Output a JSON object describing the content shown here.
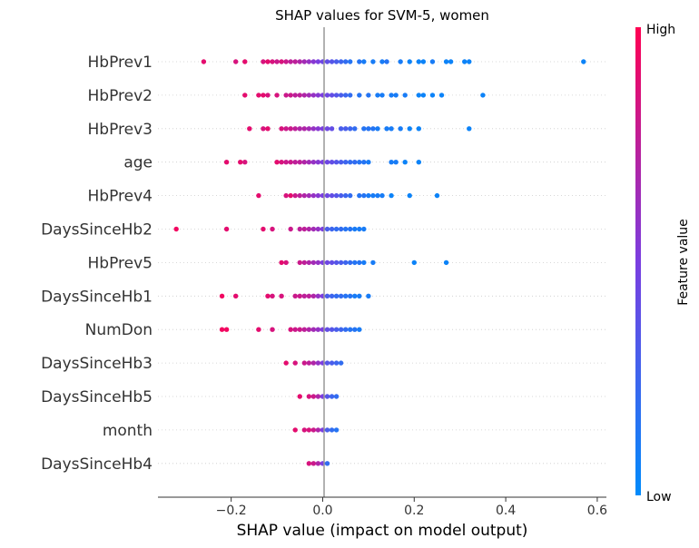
{
  "chart_data": {
    "type": "scatter",
    "title": "SHAP values for SVM-5, women",
    "xlabel": "SHAP value (impact on model output)",
    "xlim": [
      -0.36,
      0.62
    ],
    "xticks": [
      -0.2,
      0.0,
      0.2,
      0.4,
      0.6
    ],
    "xtick_labels": [
      "−0.2",
      "0.0",
      "0.2",
      "0.4",
      "0.6"
    ],
    "colorbar": {
      "label": "Feature value",
      "high": "High",
      "low": "Low",
      "color_high": "#ff0052",
      "color_low": "#008bfb"
    },
    "features": [
      {
        "name": "HbPrev1",
        "points": [
          [
            -0.26,
            0.9
          ],
          [
            -0.19,
            0.85
          ],
          [
            -0.17,
            0.9
          ],
          [
            -0.13,
            0.85
          ],
          [
            -0.12,
            0.9
          ],
          [
            -0.11,
            0.85
          ],
          [
            -0.1,
            0.8
          ],
          [
            -0.09,
            0.85
          ],
          [
            -0.08,
            0.8
          ],
          [
            -0.07,
            0.75
          ],
          [
            -0.06,
            0.75
          ],
          [
            -0.05,
            0.7
          ],
          [
            -0.04,
            0.65
          ],
          [
            -0.03,
            0.6
          ],
          [
            -0.02,
            0.55
          ],
          [
            -0.01,
            0.5
          ],
          [
            0.0,
            0.45
          ],
          [
            0.01,
            0.4
          ],
          [
            0.02,
            0.35
          ],
          [
            0.03,
            0.3
          ],
          [
            0.04,
            0.25
          ],
          [
            0.05,
            0.2
          ],
          [
            0.06,
            0.15
          ],
          [
            0.08,
            0.15
          ],
          [
            0.09,
            0.1
          ],
          [
            0.11,
            0.1
          ],
          [
            0.13,
            0.1
          ],
          [
            0.14,
            0.15
          ],
          [
            0.17,
            0.1
          ],
          [
            0.19,
            0.05
          ],
          [
            0.21,
            0.05
          ],
          [
            0.22,
            0.05
          ],
          [
            0.24,
            0.1
          ],
          [
            0.27,
            0.05
          ],
          [
            0.28,
            0.05
          ],
          [
            0.31,
            0.05
          ],
          [
            0.32,
            0.05
          ],
          [
            0.57,
            0.05
          ]
        ]
      },
      {
        "name": "HbPrev2",
        "points": [
          [
            -0.17,
            0.9
          ],
          [
            -0.14,
            0.9
          ],
          [
            -0.13,
            0.9
          ],
          [
            -0.12,
            0.85
          ],
          [
            -0.1,
            0.85
          ],
          [
            -0.08,
            0.8
          ],
          [
            -0.07,
            0.8
          ],
          [
            -0.06,
            0.75
          ],
          [
            -0.05,
            0.75
          ],
          [
            -0.04,
            0.7
          ],
          [
            -0.03,
            0.65
          ],
          [
            -0.02,
            0.6
          ],
          [
            -0.01,
            0.55
          ],
          [
            0.0,
            0.5
          ],
          [
            0.01,
            0.45
          ],
          [
            0.02,
            0.4
          ],
          [
            0.03,
            0.35
          ],
          [
            0.04,
            0.3
          ],
          [
            0.05,
            0.25
          ],
          [
            0.06,
            0.2
          ],
          [
            0.08,
            0.15
          ],
          [
            0.1,
            0.15
          ],
          [
            0.12,
            0.1
          ],
          [
            0.13,
            0.1
          ],
          [
            0.15,
            0.1
          ],
          [
            0.16,
            0.1
          ],
          [
            0.18,
            0.1
          ],
          [
            0.21,
            0.05
          ],
          [
            0.22,
            0.05
          ],
          [
            0.24,
            0.05
          ],
          [
            0.26,
            0.05
          ],
          [
            0.35,
            0.05
          ]
        ]
      },
      {
        "name": "HbPrev3",
        "points": [
          [
            -0.16,
            0.9
          ],
          [
            -0.13,
            0.85
          ],
          [
            -0.12,
            0.9
          ],
          [
            -0.09,
            0.85
          ],
          [
            -0.08,
            0.8
          ],
          [
            -0.07,
            0.8
          ],
          [
            -0.06,
            0.75
          ],
          [
            -0.05,
            0.7
          ],
          [
            -0.04,
            0.7
          ],
          [
            -0.03,
            0.65
          ],
          [
            -0.02,
            0.6
          ],
          [
            -0.01,
            0.55
          ],
          [
            0.0,
            0.5
          ],
          [
            0.01,
            0.45
          ],
          [
            0.02,
            0.4
          ],
          [
            0.04,
            0.3
          ],
          [
            0.05,
            0.3
          ],
          [
            0.06,
            0.25
          ],
          [
            0.07,
            0.2
          ],
          [
            0.09,
            0.15
          ],
          [
            0.1,
            0.15
          ],
          [
            0.11,
            0.15
          ],
          [
            0.12,
            0.1
          ],
          [
            0.14,
            0.1
          ],
          [
            0.15,
            0.1
          ],
          [
            0.17,
            0.1
          ],
          [
            0.19,
            0.05
          ],
          [
            0.21,
            0.05
          ],
          [
            0.32,
            0.05
          ]
        ]
      },
      {
        "name": "age",
        "points": [
          [
            -0.21,
            0.9
          ],
          [
            -0.18,
            0.9
          ],
          [
            -0.17,
            0.85
          ],
          [
            -0.1,
            0.9
          ],
          [
            -0.09,
            0.85
          ],
          [
            -0.08,
            0.8
          ],
          [
            -0.07,
            0.8
          ],
          [
            -0.06,
            0.75
          ],
          [
            -0.05,
            0.75
          ],
          [
            -0.04,
            0.7
          ],
          [
            -0.03,
            0.65
          ],
          [
            -0.02,
            0.6
          ],
          [
            -0.01,
            0.55
          ],
          [
            0.0,
            0.5
          ],
          [
            0.01,
            0.45
          ],
          [
            0.02,
            0.4
          ],
          [
            0.03,
            0.35
          ],
          [
            0.04,
            0.3
          ],
          [
            0.05,
            0.25
          ],
          [
            0.06,
            0.2
          ],
          [
            0.07,
            0.2
          ],
          [
            0.08,
            0.15
          ],
          [
            0.09,
            0.15
          ],
          [
            0.1,
            0.1
          ],
          [
            0.15,
            0.1
          ],
          [
            0.16,
            0.1
          ],
          [
            0.18,
            0.05
          ],
          [
            0.21,
            0.05
          ]
        ]
      },
      {
        "name": "HbPrev4",
        "points": [
          [
            -0.14,
            0.9
          ],
          [
            -0.08,
            0.85
          ],
          [
            -0.07,
            0.9
          ],
          [
            -0.06,
            0.8
          ],
          [
            -0.05,
            0.75
          ],
          [
            -0.04,
            0.7
          ],
          [
            -0.03,
            0.65
          ],
          [
            -0.02,
            0.6
          ],
          [
            -0.01,
            0.55
          ],
          [
            0.0,
            0.5
          ],
          [
            0.01,
            0.45
          ],
          [
            0.02,
            0.4
          ],
          [
            0.03,
            0.35
          ],
          [
            0.04,
            0.3
          ],
          [
            0.05,
            0.25
          ],
          [
            0.06,
            0.2
          ],
          [
            0.08,
            0.15
          ],
          [
            0.09,
            0.15
          ],
          [
            0.1,
            0.1
          ],
          [
            0.11,
            0.1
          ],
          [
            0.12,
            0.1
          ],
          [
            0.13,
            0.1
          ],
          [
            0.15,
            0.05
          ],
          [
            0.19,
            0.05
          ],
          [
            0.25,
            0.05
          ]
        ]
      },
      {
        "name": "DaysSinceHb2",
        "points": [
          [
            -0.32,
            0.95
          ],
          [
            -0.21,
            0.9
          ],
          [
            -0.13,
            0.9
          ],
          [
            -0.11,
            0.85
          ],
          [
            -0.07,
            0.8
          ],
          [
            -0.05,
            0.75
          ],
          [
            -0.04,
            0.75
          ],
          [
            -0.03,
            0.7
          ],
          [
            -0.02,
            0.65
          ],
          [
            -0.01,
            0.6
          ],
          [
            0.0,
            0.5
          ],
          [
            0.01,
            0.3
          ],
          [
            0.02,
            0.25
          ],
          [
            0.03,
            0.2
          ],
          [
            0.04,
            0.2
          ],
          [
            0.05,
            0.15
          ],
          [
            0.06,
            0.15
          ],
          [
            0.07,
            0.1
          ],
          [
            0.08,
            0.1
          ],
          [
            0.09,
            0.1
          ]
        ]
      },
      {
        "name": "HbPrev5",
        "points": [
          [
            -0.09,
            0.9
          ],
          [
            -0.08,
            0.85
          ],
          [
            -0.05,
            0.8
          ],
          [
            -0.04,
            0.75
          ],
          [
            -0.03,
            0.7
          ],
          [
            -0.02,
            0.65
          ],
          [
            -0.01,
            0.6
          ],
          [
            0.0,
            0.5
          ],
          [
            0.01,
            0.45
          ],
          [
            0.02,
            0.4
          ],
          [
            0.03,
            0.35
          ],
          [
            0.04,
            0.3
          ],
          [
            0.05,
            0.25
          ],
          [
            0.06,
            0.2
          ],
          [
            0.07,
            0.15
          ],
          [
            0.08,
            0.15
          ],
          [
            0.09,
            0.1
          ],
          [
            0.11,
            0.1
          ],
          [
            0.2,
            0.05
          ],
          [
            0.27,
            0.05
          ]
        ]
      },
      {
        "name": "DaysSinceHb1",
        "points": [
          [
            -0.22,
            0.95
          ],
          [
            -0.19,
            0.9
          ],
          [
            -0.12,
            0.9
          ],
          [
            -0.11,
            0.85
          ],
          [
            -0.09,
            0.85
          ],
          [
            -0.06,
            0.8
          ],
          [
            -0.05,
            0.8
          ],
          [
            -0.04,
            0.75
          ],
          [
            -0.03,
            0.75
          ],
          [
            -0.02,
            0.7
          ],
          [
            -0.01,
            0.6
          ],
          [
            0.0,
            0.5
          ],
          [
            0.01,
            0.3
          ],
          [
            0.02,
            0.25
          ],
          [
            0.03,
            0.2
          ],
          [
            0.04,
            0.2
          ],
          [
            0.05,
            0.15
          ],
          [
            0.06,
            0.15
          ],
          [
            0.07,
            0.1
          ],
          [
            0.08,
            0.1
          ],
          [
            0.1,
            0.1
          ]
        ]
      },
      {
        "name": "NumDon",
        "points": [
          [
            -0.22,
            0.95
          ],
          [
            -0.21,
            0.95
          ],
          [
            -0.14,
            0.9
          ],
          [
            -0.11,
            0.85
          ],
          [
            -0.07,
            0.85
          ],
          [
            -0.06,
            0.8
          ],
          [
            -0.05,
            0.8
          ],
          [
            -0.04,
            0.75
          ],
          [
            -0.03,
            0.7
          ],
          [
            -0.02,
            0.65
          ],
          [
            -0.01,
            0.6
          ],
          [
            0.0,
            0.5
          ],
          [
            0.01,
            0.4
          ],
          [
            0.02,
            0.35
          ],
          [
            0.03,
            0.3
          ],
          [
            0.04,
            0.25
          ],
          [
            0.05,
            0.2
          ],
          [
            0.06,
            0.15
          ],
          [
            0.07,
            0.15
          ],
          [
            0.08,
            0.1
          ]
        ]
      },
      {
        "name": "DaysSinceHb3",
        "points": [
          [
            -0.08,
            0.9
          ],
          [
            -0.06,
            0.85
          ],
          [
            -0.04,
            0.8
          ],
          [
            -0.03,
            0.75
          ],
          [
            -0.02,
            0.7
          ],
          [
            -0.01,
            0.6
          ],
          [
            0.0,
            0.5
          ],
          [
            0.01,
            0.35
          ],
          [
            0.02,
            0.3
          ],
          [
            0.03,
            0.25
          ],
          [
            0.04,
            0.2
          ]
        ]
      },
      {
        "name": "DaysSinceHb5",
        "points": [
          [
            -0.05,
            0.9
          ],
          [
            -0.03,
            0.85
          ],
          [
            -0.02,
            0.8
          ],
          [
            -0.01,
            0.7
          ],
          [
            0.0,
            0.5
          ],
          [
            0.01,
            0.35
          ],
          [
            0.02,
            0.25
          ],
          [
            0.03,
            0.2
          ]
        ]
      },
      {
        "name": "month",
        "points": [
          [
            -0.06,
            0.9
          ],
          [
            -0.04,
            0.85
          ],
          [
            -0.03,
            0.85
          ],
          [
            -0.02,
            0.8
          ],
          [
            -0.01,
            0.7
          ],
          [
            0.0,
            0.5
          ],
          [
            0.01,
            0.3
          ],
          [
            0.02,
            0.2
          ],
          [
            0.03,
            0.15
          ]
        ]
      },
      {
        "name": "DaysSinceHb4",
        "points": [
          [
            -0.03,
            0.85
          ],
          [
            -0.02,
            0.8
          ],
          [
            -0.01,
            0.7
          ],
          [
            0.0,
            0.5
          ],
          [
            0.01,
            0.2
          ]
        ]
      }
    ]
  }
}
